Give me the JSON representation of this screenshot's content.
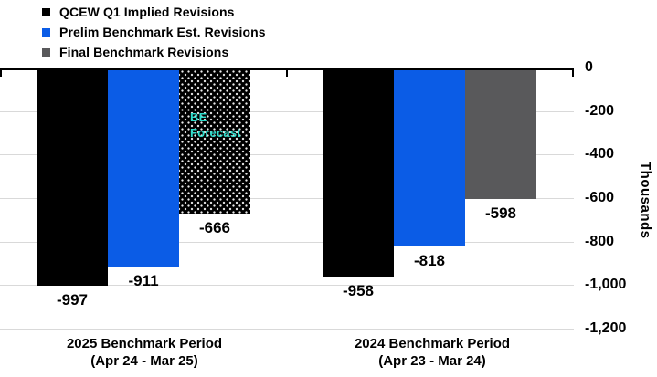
{
  "chart_data": {
    "type": "bar",
    "title": "",
    "xlabel": "",
    "ylabel": "Thousands",
    "ylim": [
      -1200,
      0
    ],
    "ytick_labels": [
      "0",
      "-200",
      "-400",
      "-600",
      "-800",
      "-1,000",
      "-1,200"
    ],
    "grid": true,
    "legend_position": "top-left",
    "categories": [
      {
        "line1": "2025 Benchmark Period",
        "line2": "(Apr 24 - Mar 25)"
      },
      {
        "line1": "2024 Benchmark Period",
        "line2": "(Apr 23 - Mar 24)"
      }
    ],
    "series": [
      {
        "key": "qcew",
        "name": "QCEW Q1 Implied Revisions",
        "color": "#000000",
        "pattern": [
          "solid",
          "solid"
        ],
        "values": [
          -997,
          -958
        ],
        "labels": [
          "-997",
          "-958"
        ]
      },
      {
        "key": "prelim",
        "name": "Prelim Benchmark Est. Revisions",
        "color": "#0b5ce6",
        "pattern": [
          "solid",
          "solid"
        ],
        "values": [
          -911,
          -818
        ],
        "labels": [
          "-911",
          "-818"
        ]
      },
      {
        "key": "final",
        "name": "Final Benchmark Revisions",
        "color": "#59595b",
        "pattern": [
          "dotted-forecast",
          "solid"
        ],
        "values": [
          -666,
          -598
        ],
        "labels": [
          "-666",
          "-598"
        ]
      }
    ],
    "annotation": {
      "line1": "BE",
      "line2": "Forecast",
      "color": "#2fddcc",
      "applies_to": "2025 Final Benchmark Revisions bar"
    },
    "colors": {
      "gridline": "#d9d9d9",
      "axis": "#000000",
      "forecast_fill": "#000000"
    }
  }
}
